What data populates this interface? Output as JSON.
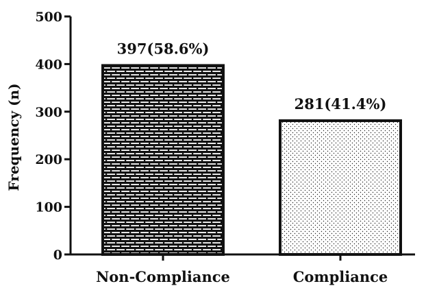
{
  "chart_data": {
    "type": "bar",
    "title": "",
    "xlabel": "",
    "ylabel": "Frequency (n)",
    "ylim": [
      0,
      500
    ],
    "yticks": [
      0,
      100,
      200,
      300,
      400,
      500
    ],
    "grid": false,
    "categories": [
      "Non-Compliance",
      "Compliance"
    ],
    "values": [
      397,
      281
    ],
    "data_labels": [
      "397(58.6%)",
      "281(41.4%)"
    ],
    "bar_patterns": [
      "brick",
      "dots"
    ],
    "colors": {
      "outline": "#111111",
      "pattern": "#111111",
      "background": "#ffffff"
    }
  }
}
